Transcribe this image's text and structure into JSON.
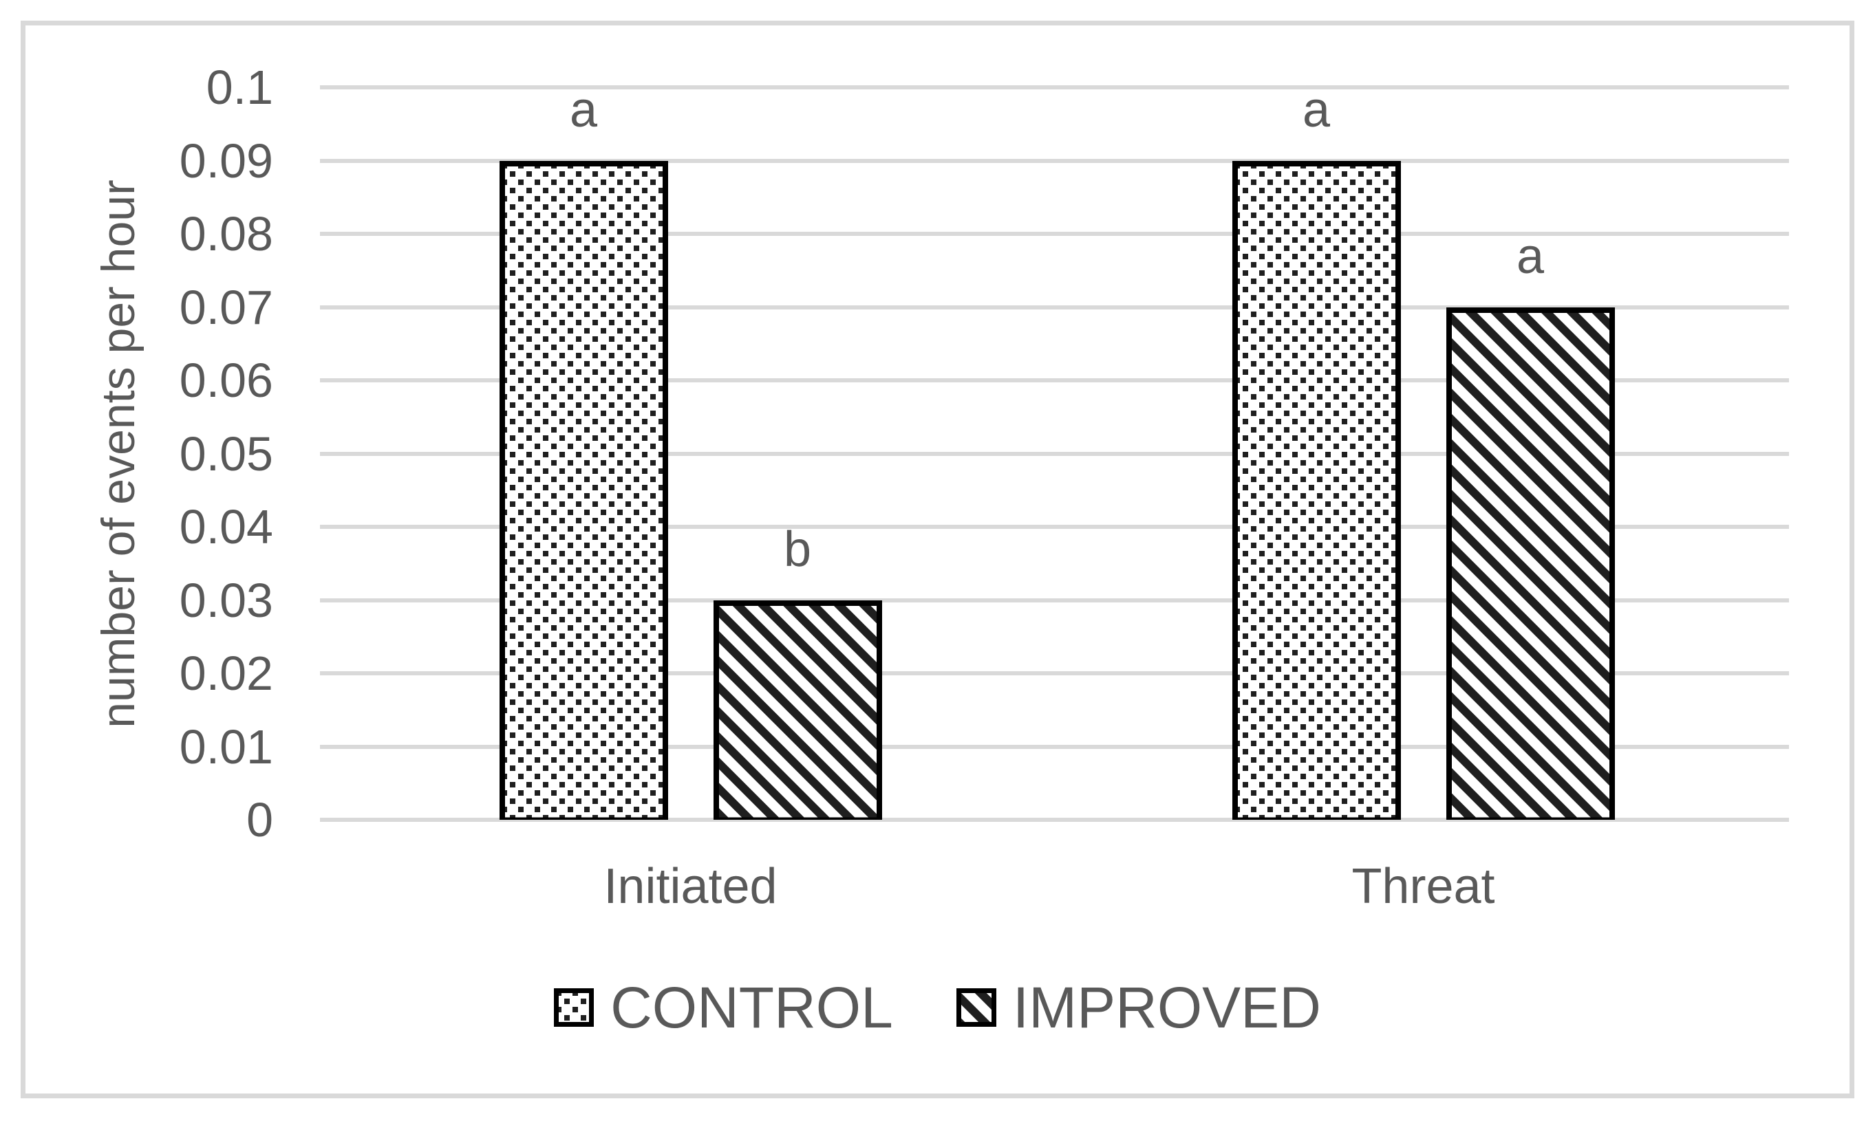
{
  "colors": {
    "text": "#595959",
    "gridline": "#d9d9d9",
    "frame_border": "#d9d9d9",
    "bar_border": "#000000",
    "pattern_ink": "#1f1f1f",
    "background": "#ffffff"
  },
  "chart_data": {
    "type": "bar",
    "title": "",
    "categories": [
      "Initiated",
      "Threat"
    ],
    "series": [
      {
        "name": "CONTROL",
        "pattern": "dots",
        "values": [
          0.09,
          0.09
        ]
      },
      {
        "name": "IMPROVED",
        "pattern": "diagonal-stripes",
        "values": [
          0.03,
          0.07
        ]
      }
    ],
    "annotations": {
      "significance_letters": [
        [
          "a",
          "b"
        ],
        [
          "a",
          "a"
        ]
      ]
    },
    "xlabel": "",
    "ylabel": "number of events per hour",
    "ylim": [
      0,
      0.1
    ],
    "ytick_values": [
      0,
      0.01,
      0.02,
      0.03,
      0.04,
      0.05,
      0.06,
      0.07,
      0.08,
      0.09,
      0.1
    ],
    "ytick_labels": [
      "0",
      "0.01",
      "0.02",
      "0.03",
      "0.04",
      "0.05",
      "0.06",
      "0.07",
      "0.08",
      "0.09",
      "0.1"
    ],
    "grid": true,
    "legend_position": "bottom"
  }
}
